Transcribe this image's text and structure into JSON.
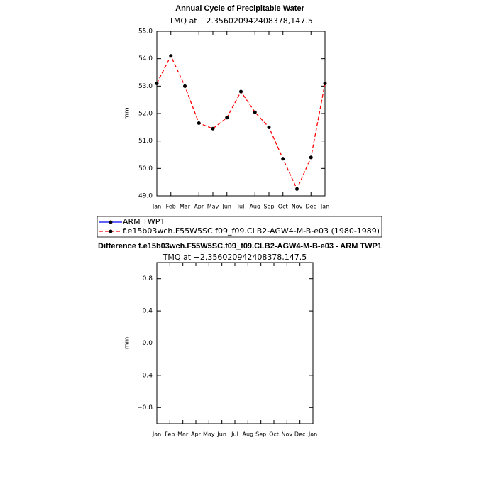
{
  "chart_data": [
    {
      "type": "line",
      "title": "Annual Cycle of Precipitable Water",
      "subtitle": "TMQ at −2.356020942408378,147.5",
      "ylabel": "mm",
      "categories": [
        "Jan",
        "Feb",
        "Mar",
        "Apr",
        "May",
        "Jun",
        "Jul",
        "Aug",
        "Sep",
        "Oct",
        "Nov",
        "Dec",
        "Jan"
      ],
      "series": [
        {
          "name": "ARM TWP1",
          "color": "#0000ff",
          "line_style": "solid",
          "values": [
            null,
            null,
            null,
            null,
            null,
            null,
            null,
            null,
            null,
            null,
            null,
            null,
            null
          ]
        },
        {
          "name": "f.e15b03wch.F55W5SC.f09_f09.CLB2-AGW4-M-B-e03 (1980-1989)",
          "color": "#ff0000",
          "line_style": "dashed",
          "values": [
            53.1,
            54.1,
            53.0,
            51.65,
            51.45,
            51.85,
            52.8,
            52.05,
            51.5,
            50.35,
            49.25,
            50.4,
            53.1
          ]
        }
      ],
      "ylim": [
        49,
        55
      ],
      "yticks": [
        {
          "value": 49,
          "label": "49.0"
        },
        {
          "value": 50,
          "label": "50.0"
        },
        {
          "value": 51,
          "label": "51.0"
        },
        {
          "value": 52,
          "label": "52.0"
        },
        {
          "value": 53,
          "label": "53.0"
        },
        {
          "value": 54,
          "label": "54.0"
        },
        {
          "value": 55,
          "label": "55.0"
        }
      ],
      "legend": "bottom"
    },
    {
      "type": "line",
      "title": "Difference f.e15b03wch.F55W5SC.f09_f09.CLB2-AGW4-M-B-e03 - ARM TWP1",
      "subtitle": "TMQ at −2.356020942408378,147.5",
      "ylabel": "mm",
      "categories": [
        "Jan",
        "Feb",
        "Mar",
        "Apr",
        "May",
        "Jun",
        "Jul",
        "Aug",
        "Sep",
        "Oct",
        "Nov",
        "Dec",
        "Jan"
      ],
      "ylim": [
        -1,
        1
      ],
      "yticks": [
        {
          "value": -0.8,
          "label": "−0.8"
        },
        {
          "value": -0.4,
          "label": "−0.4"
        },
        {
          "value": 0,
          "label": "0.0"
        },
        {
          "value": 0.4,
          "label": "0.4"
        },
        {
          "value": 0.8,
          "label": "0.8"
        }
      ]
    }
  ]
}
